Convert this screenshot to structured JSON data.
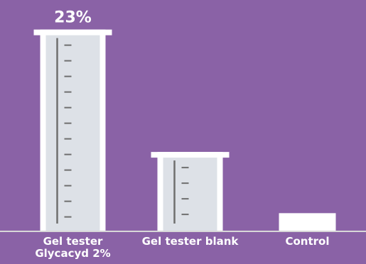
{
  "chart_data": {
    "type": "bar",
    "categories": [
      "Gel tester\nGlycacyd 2%",
      "Gel tester blank",
      "Control"
    ],
    "values": [
      23,
      9,
      2
    ],
    "value_labels": [
      "23%",
      null,
      null
    ],
    "color": "#ffffff",
    "ylim": [
      0,
      25
    ]
  }
}
